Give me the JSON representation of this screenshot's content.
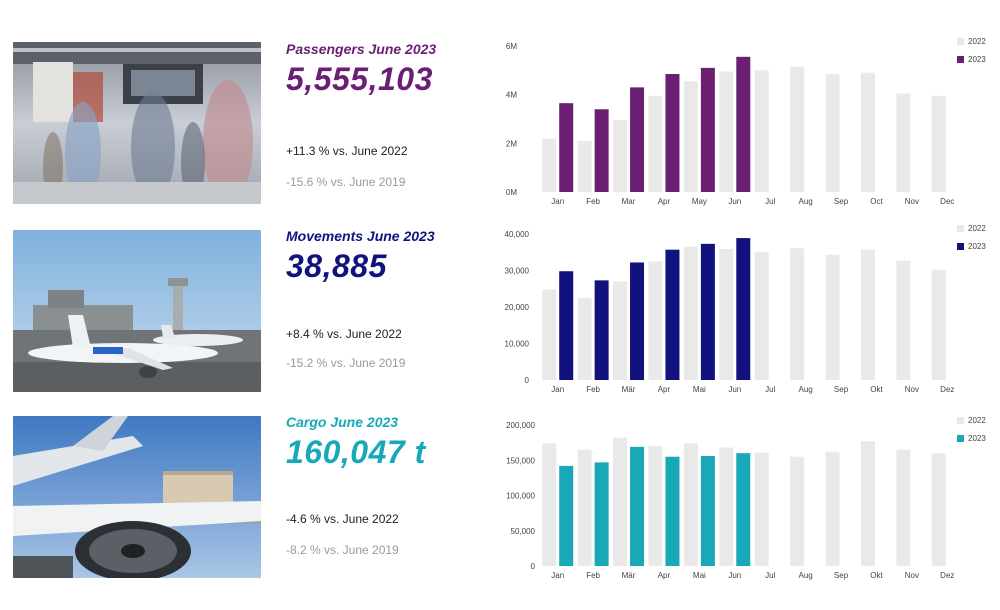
{
  "colors": {
    "passengers": "#6b1f73",
    "movements": "#12127f",
    "cargo": "#19a8b8",
    "bar_2022": "#e9e9ea"
  },
  "panels": [
    {
      "id": "passengers",
      "title": "Passengers June 2023",
      "value": "5,555,103",
      "compare_2022": "+11.3 % vs. June 2022",
      "compare_2019": "-15.6 % vs. June 2019",
      "photo": "airport-terminal-crowd-image"
    },
    {
      "id": "movements",
      "title": "Movements June 2023",
      "value": "38,885",
      "compare_2022": "+8.4 % vs. June 2022",
      "compare_2019": "-15.2 % vs. June 2019",
      "photo": "aircraft-on-apron-image"
    },
    {
      "id": "cargo",
      "title": "Cargo June 2023",
      "value": "160,047 t",
      "compare_2022": "-4.6 % vs. June 2022",
      "compare_2019": "-8.2 % vs. June 2019",
      "photo": "cargo-aircraft-loading-image"
    }
  ],
  "chart_data": [
    {
      "type": "bar",
      "categories": [
        "Jan",
        "Feb",
        "Mar",
        "Apr",
        "May",
        "Jun",
        "Jul",
        "Aug",
        "Sep",
        "Oct",
        "Nov",
        "Dec"
      ],
      "y_ticks": [
        {
          "value": 0,
          "label": "0M"
        },
        {
          "value": 2000000,
          "label": "2M"
        },
        {
          "value": 4000000,
          "label": "4M"
        },
        {
          "value": 6000000,
          "label": "6M"
        }
      ],
      "ylim": [
        0,
        6000000
      ],
      "legend_position": "top-right",
      "series": [
        {
          "name": "2022",
          "values": [
            2200000,
            2100000,
            2950000,
            3950000,
            4550000,
            4950000,
            5000000,
            5150000,
            4850000,
            4900000,
            4050000,
            3950000
          ]
        },
        {
          "name": "2023",
          "values": [
            3650000,
            3400000,
            4300000,
            4850000,
            5100000,
            5555103,
            null,
            null,
            null,
            null,
            null,
            null
          ]
        }
      ]
    },
    {
      "type": "bar",
      "categories": [
        "Jan",
        "Feb",
        "Mär",
        "Apr",
        "Mai",
        "Jun",
        "Jul",
        "Aug",
        "Sep",
        "Okt",
        "Nov",
        "Dez"
      ],
      "y_ticks": [
        {
          "value": 0,
          "label": "0"
        },
        {
          "value": 10000,
          "label": "10,000"
        },
        {
          "value": 20000,
          "label": "20,000"
        },
        {
          "value": 30000,
          "label": "30,000"
        },
        {
          "value": 40000,
          "label": "40,000"
        }
      ],
      "ylim": [
        0,
        40000
      ],
      "legend_position": "top-right",
      "series": [
        {
          "name": "2022",
          "values": [
            24800,
            22500,
            27000,
            32500,
            36500,
            35900,
            35000,
            36100,
            34300,
            35700,
            32700,
            30200
          ]
        },
        {
          "name": "2023",
          "values": [
            29800,
            27300,
            32200,
            35700,
            37300,
            38885,
            null,
            null,
            null,
            null,
            null,
            null
          ]
        }
      ]
    },
    {
      "type": "bar",
      "categories": [
        "Jan",
        "Feb",
        "Mär",
        "Apr",
        "Mai",
        "Jun",
        "Jul",
        "Aug",
        "Sep",
        "Okt",
        "Nov",
        "Dez"
      ],
      "y_ticks": [
        {
          "value": 0,
          "label": "0"
        },
        {
          "value": 50000,
          "label": "50,000"
        },
        {
          "value": 100000,
          "label": "100,000"
        },
        {
          "value": 150000,
          "label": "150,000"
        },
        {
          "value": 200000,
          "label": "200,000"
        }
      ],
      "ylim": [
        0,
        200000
      ],
      "legend_position": "top-right",
      "series": [
        {
          "name": "2022",
          "values": [
            174000,
            165000,
            182000,
            170000,
            174000,
            168000,
            161000,
            155000,
            162000,
            177000,
            165000,
            160000
          ]
        },
        {
          "name": "2023",
          "values": [
            142000,
            147000,
            169000,
            155000,
            156000,
            160047,
            null,
            null,
            null,
            null,
            null,
            null
          ]
        }
      ]
    }
  ]
}
